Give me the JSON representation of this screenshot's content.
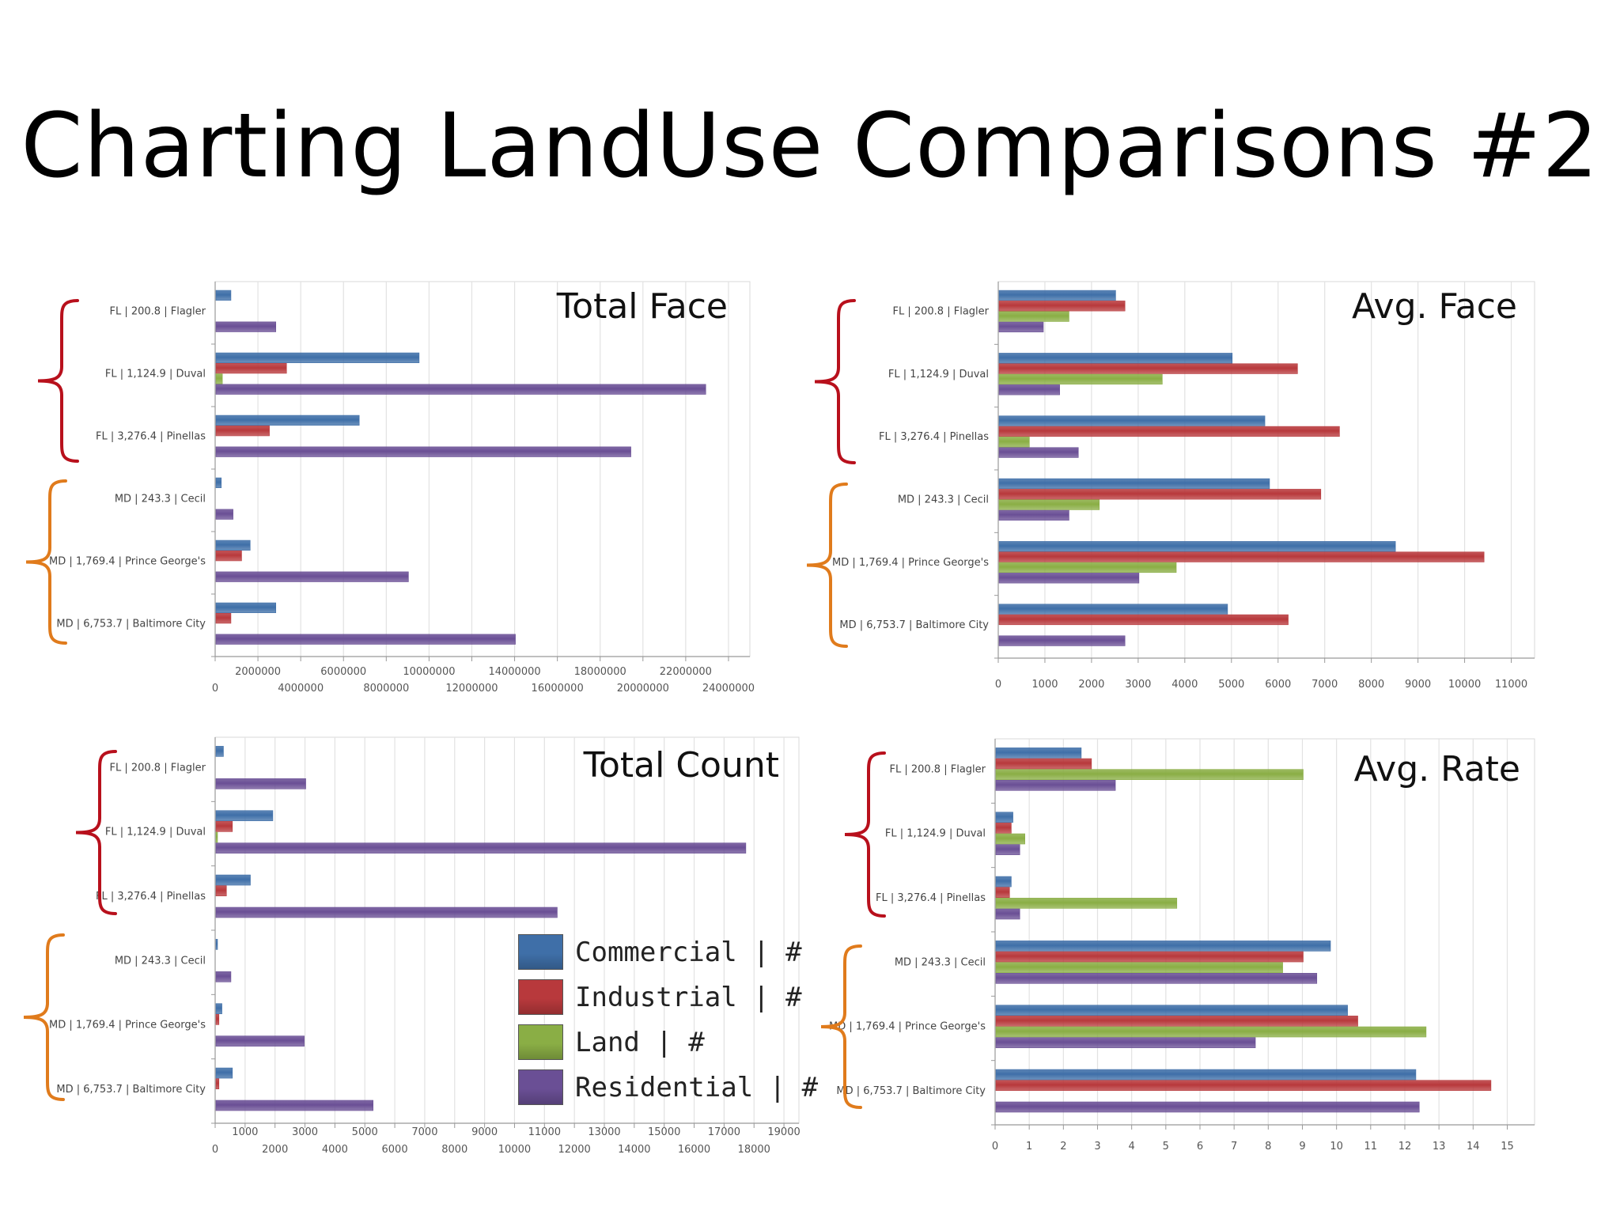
{
  "slide": {
    "title": "Charting LandUse Comparisons #2"
  },
  "colors": {
    "commercial": "#3f6fa8",
    "industrial": "#b8393c",
    "land": "#8aae45",
    "residential": "#6a4f95",
    "bracket_fl": "#b8101c",
    "bracket_md": "#e07b1c"
  },
  "chart_data": [
    {
      "type": "bar",
      "orientation": "horizontal",
      "title": "Total Face",
      "categories": [
        "FL | 200.8 | Flagler",
        "FL | 1,124.9 | Duval",
        "FL | 3,276.4 | Pinellas",
        "MD | 243.3 | Cecil",
        "MD | 1,769.4 | Prince George's",
        "MD | 6,753.7 | Baltimore City"
      ],
      "series": [
        {
          "name": "Commercial | #",
          "values": [
            700000,
            9500000,
            6700000,
            250000,
            1600000,
            2800000
          ]
        },
        {
          "name": "Industrial | #",
          "values": [
            0,
            3300000,
            2500000,
            0,
            1200000,
            700000
          ]
        },
        {
          "name": "Land | #",
          "values": [
            0,
            300000,
            0,
            0,
            0,
            0
          ]
        },
        {
          "name": "Residential | #",
          "values": [
            2800000,
            22900000,
            19400000,
            800000,
            9000000,
            14000000
          ]
        }
      ],
      "xlim": [
        0,
        25000000
      ],
      "ticks_lower": [
        "0",
        "4000000",
        "8000000",
        "12000000",
        "16000000",
        "20000000",
        "24000000"
      ],
      "ticks_upper": [
        "2000000",
        "6000000",
        "10000000",
        "14000000",
        "18000000",
        "22000000"
      ],
      "grid": true
    },
    {
      "type": "bar",
      "orientation": "horizontal",
      "title": "Avg. Face",
      "categories": [
        "FL | 200.8 | Flagler",
        "FL | 1,124.9 | Duval",
        "FL | 3,276.4 | Pinellas",
        "MD | 243.3 | Cecil",
        "MD | 1,769.4 | Prince George's",
        "MD | 6,753.7 | Baltimore City"
      ],
      "series": [
        {
          "name": "Commercial | #",
          "values": [
            2500,
            5000,
            5700,
            5800,
            8500,
            4900
          ]
        },
        {
          "name": "Industrial | #",
          "values": [
            2700,
            6400,
            7300,
            6900,
            10400,
            6200
          ]
        },
        {
          "name": "Land | #",
          "values": [
            1500,
            3500,
            650,
            2150,
            3800,
            0
          ]
        },
        {
          "name": "Residential | #",
          "values": [
            950,
            1300,
            1700,
            1500,
            3000,
            2700
          ]
        }
      ],
      "xlim": [
        0,
        11500
      ],
      "ticks": [
        "0",
        "1000",
        "2000",
        "3000",
        "4000",
        "5000",
        "6000",
        "7000",
        "8000",
        "9000",
        "10000",
        "11000"
      ],
      "grid": true
    },
    {
      "type": "bar",
      "orientation": "horizontal",
      "title": "Total Count",
      "categories": [
        "FL | 200.8 | Flagler",
        "FL | 1,124.9 | Duval",
        "FL | 3,276.4 | Pinellas",
        "MD | 243.3 | Cecil",
        "MD | 1,769.4 | Prince George's",
        "MD | 6,753.7 | Baltimore City"
      ],
      "series": [
        {
          "name": "Commercial | #",
          "values": [
            250,
            1900,
            1150,
            50,
            200,
            550
          ]
        },
        {
          "name": "Industrial | #",
          "values": [
            0,
            550,
            350,
            0,
            100,
            100
          ]
        },
        {
          "name": "Land | #",
          "values": [
            0,
            50,
            0,
            0,
            0,
            0
          ]
        },
        {
          "name": "Residential | #",
          "values": [
            3000,
            17700,
            11400,
            500,
            2950,
            5250
          ]
        }
      ],
      "xlim": [
        0,
        19500
      ],
      "ticks_lower": [
        "0",
        "2000",
        "4000",
        "6000",
        "8000",
        "10000",
        "12000",
        "14000",
        "16000",
        "18000"
      ],
      "ticks_upper": [
        "1000",
        "3000",
        "5000",
        "7000",
        "9000",
        "11000",
        "13000",
        "15000",
        "17000",
        "19000"
      ],
      "grid": true
    },
    {
      "type": "bar",
      "orientation": "horizontal",
      "title": "Avg. Rate",
      "categories": [
        "FL | 200.8 | Flagler",
        "FL | 1,124.9 | Duval",
        "FL | 3,276.4 | Pinellas",
        "MD | 243.3 | Cecil",
        "MD | 1,769.4 | Prince George's",
        "MD | 6,753.7 | Baltimore City"
      ],
      "series": [
        {
          "name": "Commercial | #",
          "values": [
            2.5,
            0.5,
            0.45,
            9.8,
            10.3,
            12.3
          ]
        },
        {
          "name": "Industrial | #",
          "values": [
            2.8,
            0.45,
            0.4,
            9.0,
            10.6,
            14.5
          ]
        },
        {
          "name": "Land | #",
          "values": [
            9.0,
            0.85,
            5.3,
            8.4,
            12.6,
            0
          ]
        },
        {
          "name": "Residential | #",
          "values": [
            3.5,
            0.7,
            0.7,
            9.4,
            7.6,
            12.4
          ]
        }
      ],
      "xlim": [
        0,
        15.8
      ],
      "ticks": [
        "0",
        "1",
        "2",
        "3",
        "4",
        "5",
        "6",
        "7",
        "8",
        "9",
        "10",
        "11",
        "12",
        "13",
        "14",
        "15"
      ],
      "grid": true
    }
  ],
  "legend": {
    "items": [
      {
        "label": "Commercial | #"
      },
      {
        "label": "Industrial | #"
      },
      {
        "label": "Land | #"
      },
      {
        "label": "Residential | #"
      }
    ]
  }
}
